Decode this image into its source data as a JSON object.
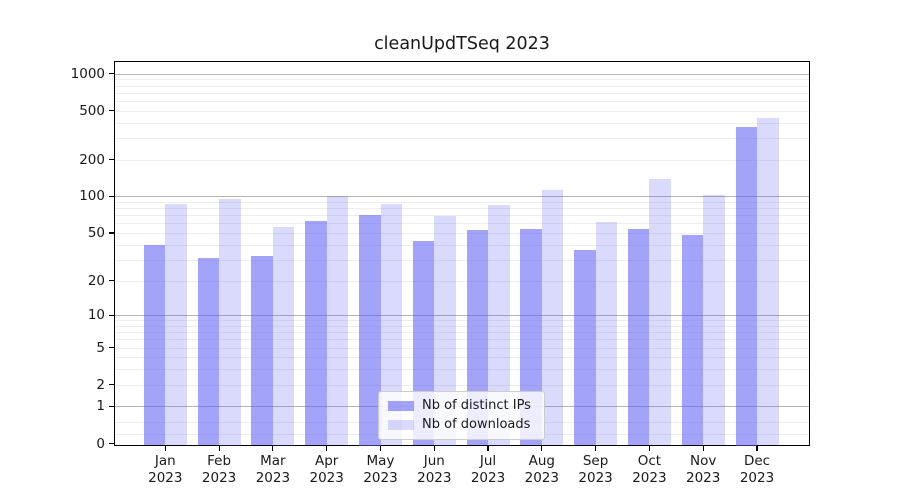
{
  "title": "cleanUpdTSeq 2023",
  "chart_data": {
    "type": "bar",
    "title": "cleanUpdTSeq 2023",
    "y_scale": "log1p",
    "grid": true,
    "legend_position": "bottom-center",
    "categories": [
      "Jan",
      "Feb",
      "Mar",
      "Apr",
      "May",
      "Jun",
      "Jul",
      "Aug",
      "Sep",
      "Oct",
      "Nov",
      "Dec"
    ],
    "x_tick_year": "2023",
    "series": [
      {
        "name": "Nb of distinct IPs",
        "color": "rgba(88,88,246,0.55)",
        "values": [
          40,
          31,
          32,
          63,
          71,
          43,
          53,
          54,
          36,
          54,
          48,
          368
        ]
      },
      {
        "name": "Nb of downloads",
        "color": "rgba(88,88,246,0.22)",
        "values": [
          86,
          96,
          56,
          100,
          87,
          69,
          85,
          113,
          62,
          138,
          103,
          435
        ]
      }
    ],
    "yticks": [
      0,
      1,
      2,
      5,
      10,
      20,
      50,
      100,
      200,
      500,
      1000
    ],
    "ylim": [
      0,
      1300
    ],
    "colors": {
      "grid_major": "#b5b5b5",
      "grid_minor": "#ededed",
      "axis": "#000000",
      "text": "#1a1a1a"
    }
  }
}
